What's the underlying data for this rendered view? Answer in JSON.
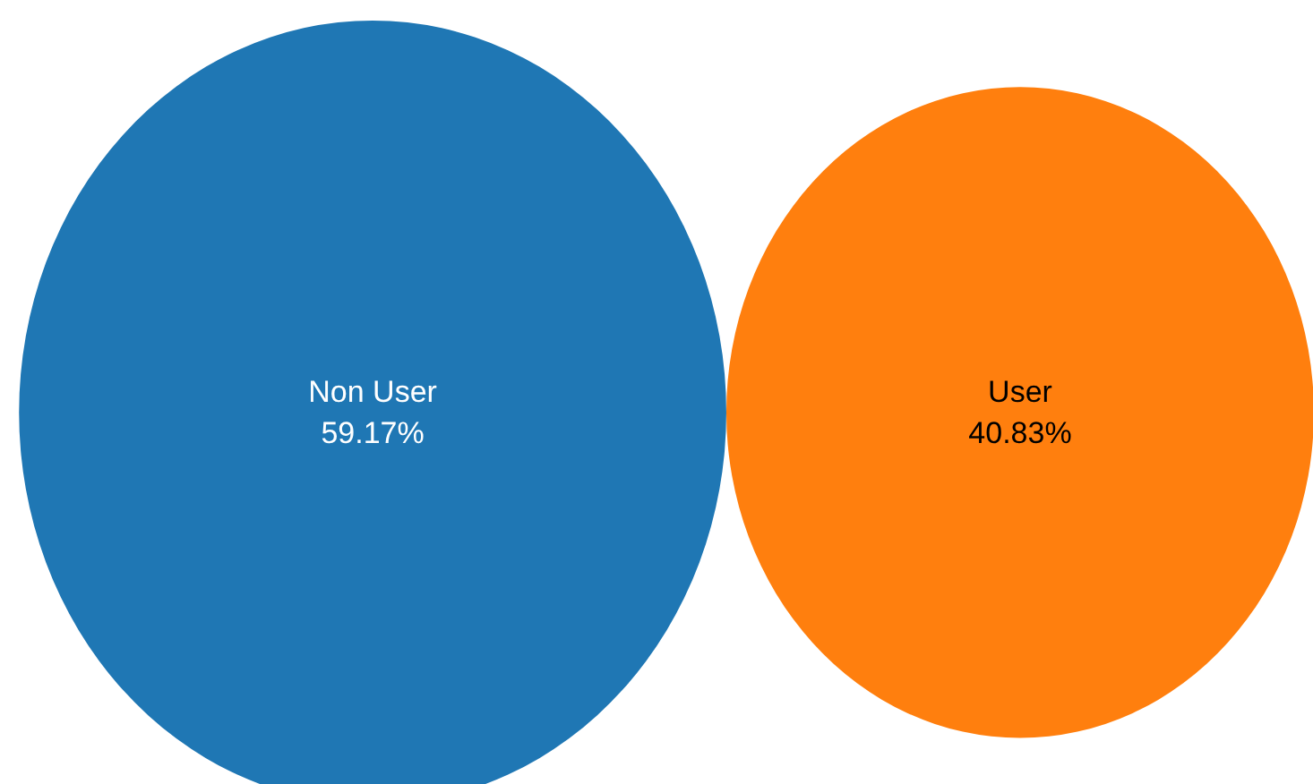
{
  "chart_data": {
    "type": "other",
    "categories": [
      "Non User",
      "User"
    ],
    "values": [
      59.17,
      40.83
    ],
    "value_labels": [
      "59.17%",
      "40.83%"
    ],
    "colors": [
      "#1f77b4",
      "#ff7f0e"
    ]
  }
}
